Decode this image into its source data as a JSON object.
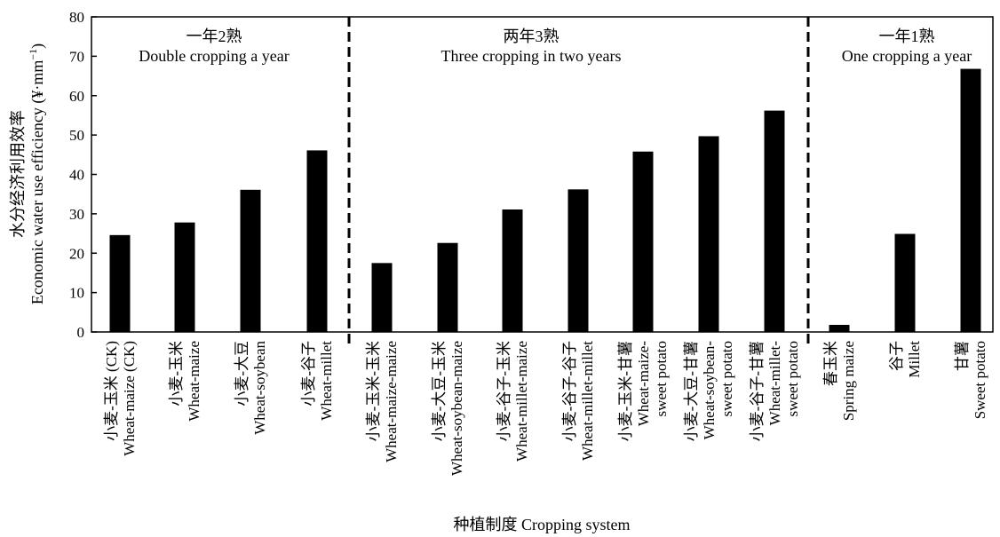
{
  "chart_data": {
    "type": "bar",
    "ylabel": [
      "水分经济利用效率",
      "Economic water use efficiency (¥·mm",
      "−1",
      ")"
    ],
    "xlabel": "种植制度 Cropping system",
    "ylim": [
      0,
      80
    ],
    "yticks": [
      0,
      10,
      20,
      30,
      40,
      50,
      60,
      70,
      80
    ],
    "bar_color": "#000000",
    "groups": [
      {
        "title_cn": "一年2熟",
        "title_en": "Double cropping a year"
      },
      {
        "title_cn": "两年3熟",
        "title_en": "Three cropping in two years"
      },
      {
        "title_cn": "一年1熟",
        "title_en": "One cropping a year"
      }
    ],
    "categories": [
      {
        "group": 0,
        "value": 24.6,
        "label": [
          "小麦-玉米 (CK)",
          "Wheat-maize (CK)"
        ]
      },
      {
        "group": 0,
        "value": 27.8,
        "label": [
          "小麦-玉米",
          "Wheat-maize"
        ]
      },
      {
        "group": 0,
        "value": 36.1,
        "label": [
          "小麦-大豆",
          "Wheat-soybean"
        ]
      },
      {
        "group": 0,
        "value": 46.1,
        "label": [
          "小麦-谷子",
          "Wheat-millet"
        ]
      },
      {
        "group": 1,
        "value": 17.5,
        "label": [
          "小麦-玉米-玉米",
          "Wheat-maize-maize"
        ]
      },
      {
        "group": 1,
        "value": 22.6,
        "label": [
          "小麦-大豆-玉米",
          "Wheat-soybean-maize"
        ]
      },
      {
        "group": 1,
        "value": 31.1,
        "label": [
          "小麦-谷子-玉米",
          "Wheat-millet-maize"
        ]
      },
      {
        "group": 1,
        "value": 36.2,
        "label": [
          "小麦-谷子-谷子",
          "Wheat-millet-millet"
        ]
      },
      {
        "group": 1,
        "value": 45.8,
        "label": [
          "小麦-玉米-甘薯",
          "Wheat-maize-",
          "sweet potato"
        ]
      },
      {
        "group": 1,
        "value": 49.7,
        "label": [
          "小麦-大豆-甘薯",
          "Wheat-soybean-",
          "sweet potato"
        ]
      },
      {
        "group": 1,
        "value": 56.2,
        "label": [
          "小麦-谷子-甘薯",
          "Wheat-millet-",
          "sweet potato"
        ]
      },
      {
        "group": 2,
        "value": 1.8,
        "label": [
          "春玉米",
          "Spring maize"
        ]
      },
      {
        "group": 2,
        "value": 24.9,
        "label": [
          "谷子",
          "Millet"
        ]
      },
      {
        "group": 2,
        "value": 66.8,
        "label": [
          "甘薯",
          "Sweet potato"
        ]
      }
    ]
  }
}
